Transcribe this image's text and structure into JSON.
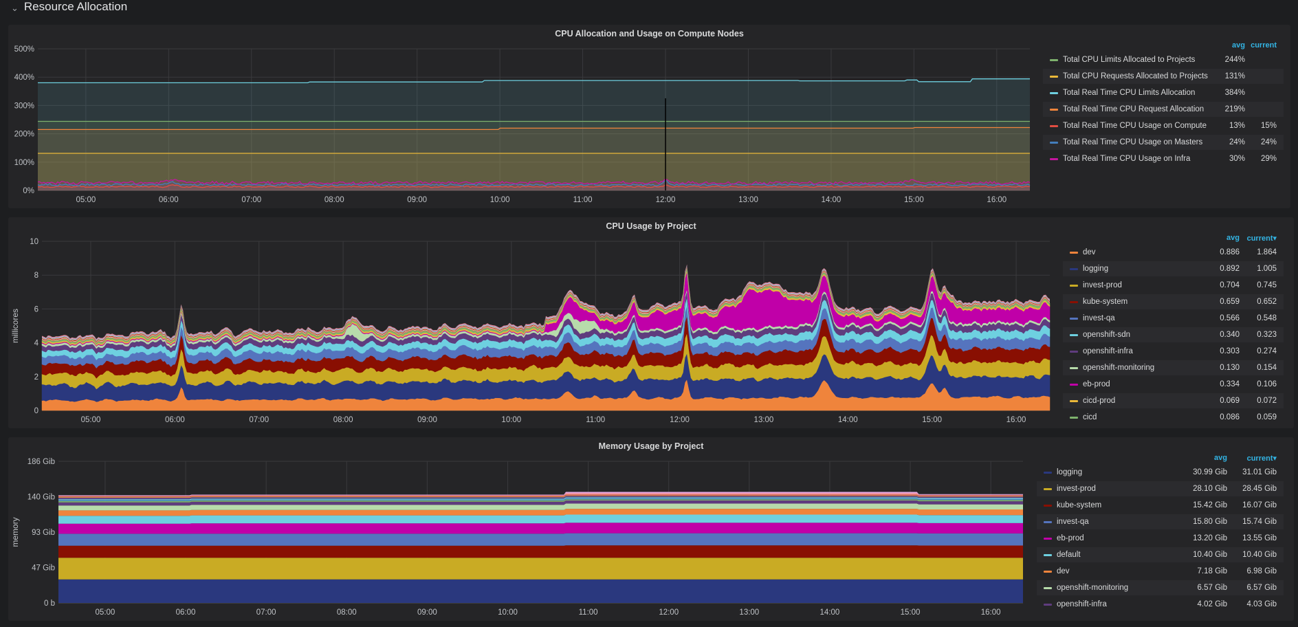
{
  "row": {
    "title": "Resource Allocation",
    "collapse_icon": "chevron-down-icon"
  },
  "time_ticks": [
    "05:00",
    "06:00",
    "07:00",
    "08:00",
    "09:00",
    "10:00",
    "11:00",
    "12:00",
    "13:00",
    "14:00",
    "15:00",
    "16:00"
  ],
  "legend_headers": {
    "avg": "avg",
    "current": "current",
    "current_sorted": "current▾"
  },
  "panels": [
    {
      "title": "CPU Allocation and Usage on Compute Nodes",
      "y_ticks": [
        "0%",
        "100%",
        "200%",
        "300%",
        "400%",
        "500%"
      ],
      "y_label": "",
      "series": [
        {
          "name": "Total CPU Limits Allocated to Projects",
          "color": "#7eb26d",
          "avg": "244%",
          "current": ""
        },
        {
          "name": "Total CPU Requests Allocated to Projects",
          "color": "#eab839",
          "avg": "131%",
          "current": ""
        },
        {
          "name": "Total Real Time CPU Limits Allocation",
          "color": "#6ed0e0",
          "avg": "384%",
          "current": ""
        },
        {
          "name": "Total Real Time CPU Request Allocation",
          "color": "#ef843c",
          "avg": "219%",
          "current": ""
        },
        {
          "name": "Total Real Time CPU Usage on Compute",
          "color": "#e24d42",
          "avg": "13%",
          "current": "15%"
        },
        {
          "name": "Total Real Time CPU Usage on Masters",
          "color": "#447ebc",
          "avg": "24%",
          "current": "24%"
        },
        {
          "name": "Total Real Time CPU Usage on Infra",
          "color": "#c4169f",
          "avg": "30%",
          "current": "29%"
        }
      ]
    },
    {
      "title": "CPU Usage by Project",
      "y_ticks": [
        "0",
        "2",
        "4",
        "6",
        "8",
        "10"
      ],
      "y_label": "millicores",
      "series": [
        {
          "name": "dev",
          "color": "#ef843c",
          "avg": "0.886",
          "current": "1.864"
        },
        {
          "name": "logging",
          "color": "#2a387e",
          "avg": "0.892",
          "current": "1.005"
        },
        {
          "name": "invest-prod",
          "color": "#c9ab24",
          "avg": "0.704",
          "current": "0.745"
        },
        {
          "name": "kube-system",
          "color": "#890f02",
          "avg": "0.659",
          "current": "0.652"
        },
        {
          "name": "invest-qa",
          "color": "#5574be",
          "avg": "0.566",
          "current": "0.548"
        },
        {
          "name": "openshift-sdn",
          "color": "#6ed0e0",
          "avg": "0.340",
          "current": "0.323"
        },
        {
          "name": "openshift-infra",
          "color": "#5f3c7e",
          "avg": "0.303",
          "current": "0.274"
        },
        {
          "name": "openshift-monitoring",
          "color": "#b7dbab",
          "avg": "0.130",
          "current": "0.154"
        },
        {
          "name": "eb-prod",
          "color": "#c000a8",
          "avg": "0.334",
          "current": "0.106"
        },
        {
          "name": "cicd-prod",
          "color": "#eab839",
          "avg": "0.069",
          "current": "0.072"
        },
        {
          "name": "cicd",
          "color": "#7eb26d",
          "avg": "0.086",
          "current": "0.059"
        }
      ]
    },
    {
      "title": "Memory Usage by Project",
      "y_ticks": [
        "0 b",
        "47 Gib",
        "93 Gib",
        "140 Gib",
        "186 Gib"
      ],
      "y_label": "memory",
      "series": [
        {
          "name": "logging",
          "color": "#2a387e",
          "avg": "30.99 Gib",
          "current": "31.01 Gib"
        },
        {
          "name": "invest-prod",
          "color": "#c9ab24",
          "avg": "28.10 Gib",
          "current": "28.45 Gib"
        },
        {
          "name": "kube-system",
          "color": "#890f02",
          "avg": "15.42 Gib",
          "current": "16.07 Gib"
        },
        {
          "name": "invest-qa",
          "color": "#5574be",
          "avg": "15.80 Gib",
          "current": "15.74 Gib"
        },
        {
          "name": "eb-prod",
          "color": "#c000a8",
          "avg": "13.20 Gib",
          "current": "13.55 Gib"
        },
        {
          "name": "default",
          "color": "#6ed0e0",
          "avg": "10.40 Gib",
          "current": "10.40 Gib"
        },
        {
          "name": "dev",
          "color": "#ef843c",
          "avg": "7.18 Gib",
          "current": "6.98 Gib"
        },
        {
          "name": "openshift-monitoring",
          "color": "#b7dbab",
          "avg": "6.57 Gib",
          "current": "6.57 Gib"
        },
        {
          "name": "openshift-infra",
          "color": "#5f3c7e",
          "avg": "4.02 Gib",
          "current": "4.03 Gib"
        }
      ]
    }
  ]
}
